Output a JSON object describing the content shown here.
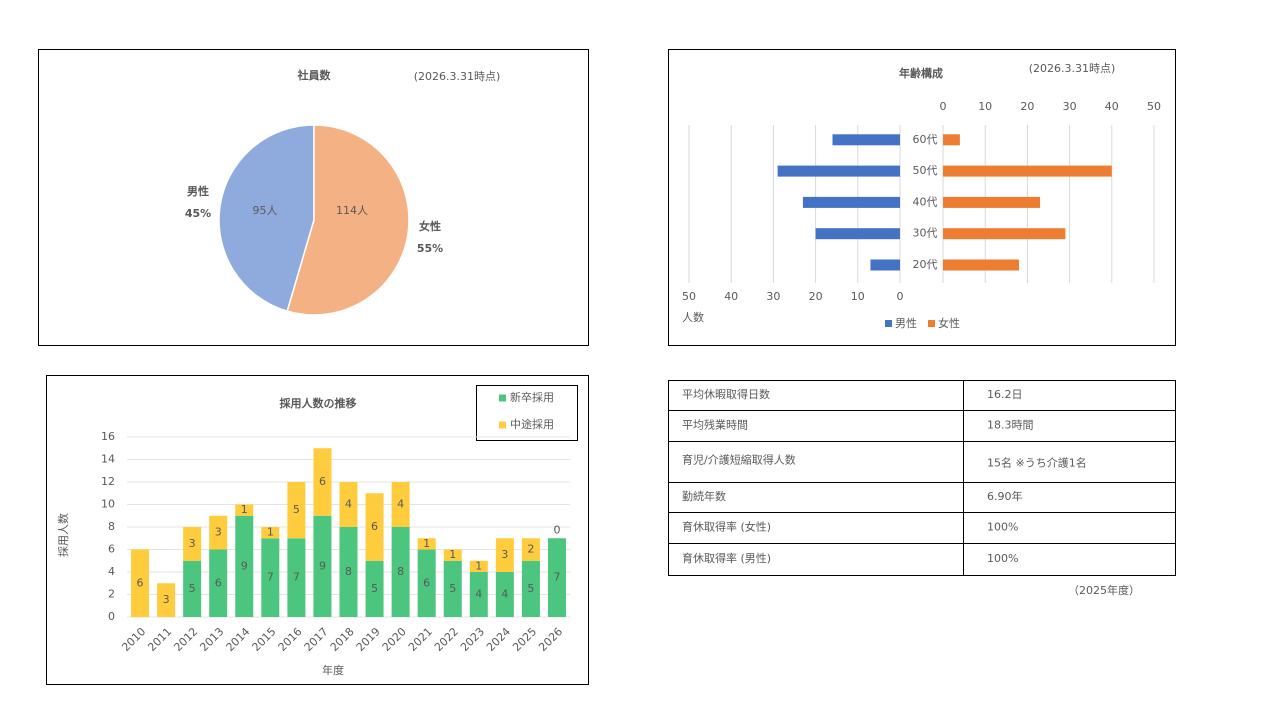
{
  "chart_data": [
    {
      "type": "pie",
      "title": "社員数",
      "subtitle": "(2026.3.31時点)",
      "categories": [
        "男性",
        "女性"
      ],
      "values": [
        95,
        114
      ],
      "value_labels": [
        "95人",
        "114人"
      ],
      "percents": [
        45,
        55
      ],
      "percent_labels": [
        "45%",
        "55%"
      ],
      "colors": [
        "#8faadc",
        "#f4b183"
      ],
      "label_colors": [
        "#4472c4",
        "#ed7d31"
      ]
    },
    {
      "type": "butterfly",
      "title": "年齢構成",
      "subtitle": "(2026.3.31時点)",
      "categories": [
        "20代",
        "30代",
        "40代",
        "50代",
        "60代"
      ],
      "series": [
        {
          "name": "男性",
          "color": "#4472c4",
          "values": [
            7,
            20,
            23,
            29,
            16
          ]
        },
        {
          "name": "女性",
          "color": "#ed7d31",
          "values": [
            18,
            29,
            23,
            40,
            4
          ]
        }
      ],
      "xlim": [
        0,
        50
      ],
      "xticks": [
        0,
        10,
        20,
        30,
        40,
        50
      ],
      "xlabel": "人数",
      "grid": true
    },
    {
      "type": "stacked",
      "title": "採用人数の推移",
      "categories": [
        "2010",
        "2011",
        "2012",
        "2013",
        "2014",
        "2015",
        "2016",
        "2017",
        "2018",
        "2019",
        "2020",
        "2021",
        "2022",
        "2023",
        "2024",
        "2025",
        "2026"
      ],
      "series": [
        {
          "name": "新卒採用",
          "color": "#4cc67e",
          "values": [
            0,
            0,
            5,
            6,
            9,
            7,
            7,
            9,
            8,
            5,
            8,
            6,
            5,
            4,
            4,
            5,
            7
          ],
          "value_labels": [
            null,
            null,
            "5",
            "6",
            "9",
            "7",
            "7",
            "9",
            "8",
            "5",
            "8",
            "6",
            "5",
            "4",
            "4",
            "5",
            "7"
          ]
        },
        {
          "name": "中途採用",
          "color": "#ffcc3e",
          "values": [
            6,
            3,
            3,
            3,
            1,
            1,
            5,
            6,
            4,
            6,
            4,
            1,
            1,
            1,
            3,
            2,
            0
          ],
          "value_labels": [
            "6",
            "3",
            "3",
            "3",
            "1",
            "1",
            "5",
            "6",
            "4",
            "6",
            "4",
            "1",
            "1",
            "1",
            "3",
            "2",
            "0"
          ]
        }
      ],
      "ylim": [
        0,
        16
      ],
      "yticks": [
        0,
        2,
        4,
        6,
        8,
        10,
        12,
        14,
        16
      ],
      "xlabel": "年度",
      "ylabel": "採用人数",
      "grid": true
    }
  ],
  "table": {
    "rows": [
      [
        "平均休暇取得日数",
        "16.2日"
      ],
      [
        "平均残業時間",
        "18.3時間"
      ],
      [
        "育児/介護短縮取得人数",
        "15名  ※うち介護1名"
      ],
      [
        "勤続年数",
        "6.90年"
      ],
      [
        "育休取得率 (女性)",
        "100%"
      ],
      [
        "育休取得率 (男性)",
        "100%"
      ]
    ],
    "note": "（2025年度）"
  }
}
